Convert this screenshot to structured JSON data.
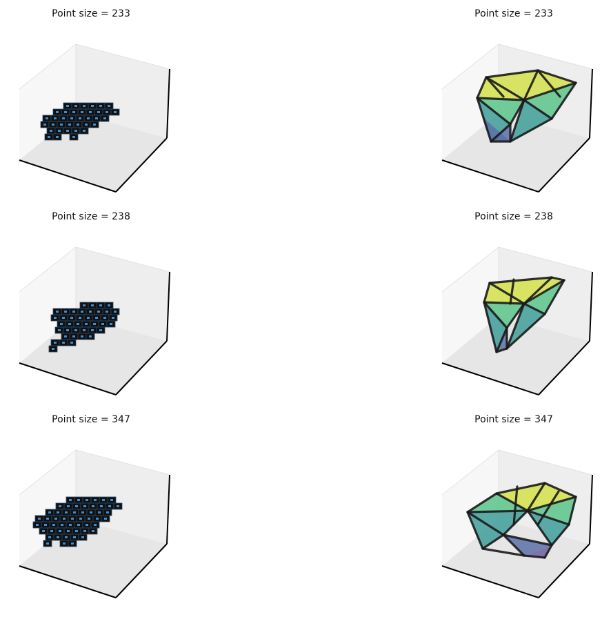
{
  "panels": [
    {
      "title": "Point size = 233",
      "kind": "voxels",
      "variant": "a"
    },
    {
      "title": "Point size = 233",
      "kind": "hull",
      "variant": "a"
    },
    {
      "title": "Point size = 238",
      "kind": "voxels",
      "variant": "b"
    },
    {
      "title": "Point size = 238",
      "kind": "hull",
      "variant": "b"
    },
    {
      "title": "Point size = 347",
      "kind": "voxels",
      "variant": "c"
    },
    {
      "title": "Point size = 347",
      "kind": "hull",
      "variant": "c"
    }
  ],
  "colors": {
    "pane_light": "#f7f7f7",
    "pane_mid": "#eeeeee",
    "pane_dark": "#e6e6e6",
    "axis_line": "#000000",
    "voxel_face": "#111111",
    "voxel_dot": "#3a8fd6",
    "hull_edge": "#1a1a1a",
    "hull_yellow": "#d4e14a",
    "hull_green": "#5bc48a",
    "hull_teal": "#3e9e99",
    "hull_blue": "#5a70a8",
    "hull_purple": "#6b5fa0"
  }
}
